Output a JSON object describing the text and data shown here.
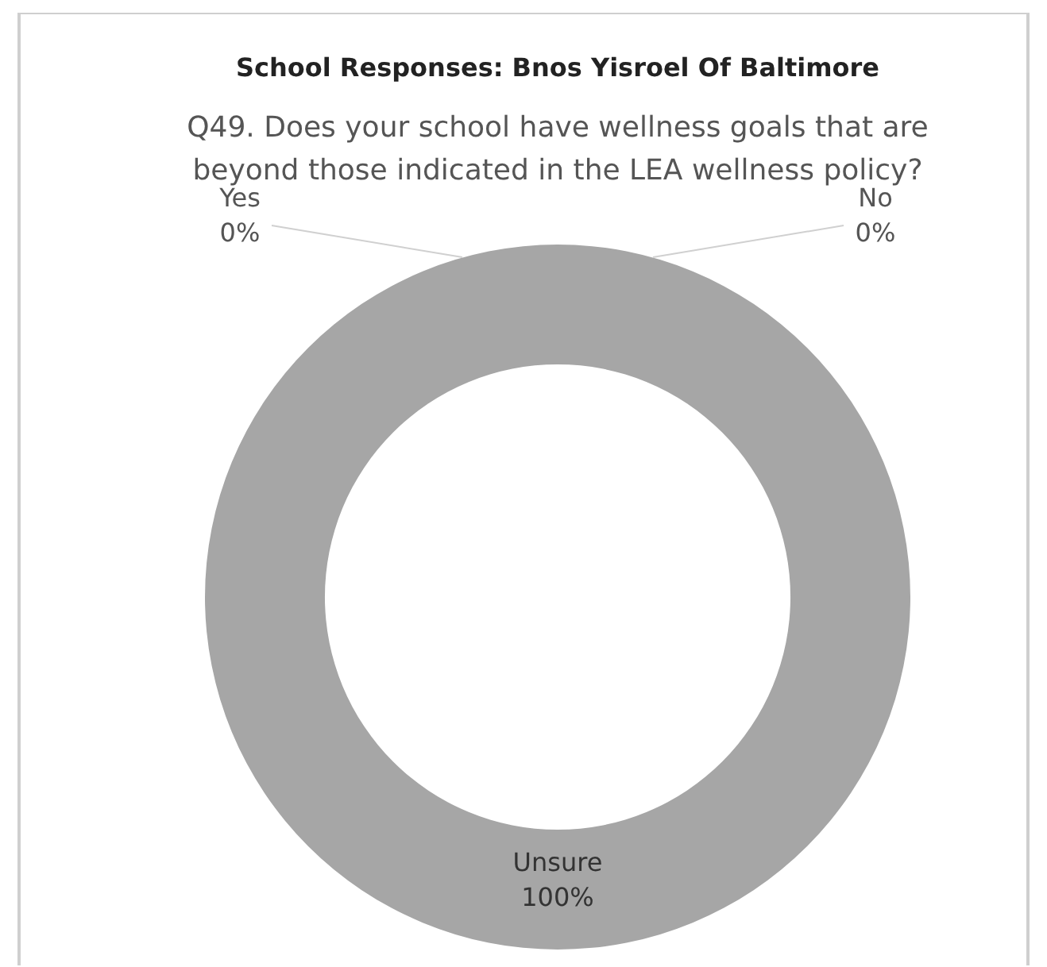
{
  "chart_data": {
    "type": "donut",
    "title": "School Responses: Bnos Yisroel Of Baltimore",
    "subtitle": "Q49. Does your school have wellness goals that are beyond those indicated in the LEA wellness policy?",
    "categories": [
      "Yes",
      "No",
      "Unsure"
    ],
    "values": [
      0,
      0,
      100
    ],
    "value_labels": [
      "0%",
      "0%",
      "100%"
    ],
    "colors": [
      "#a6a6a6",
      "#a6a6a6",
      "#a6a6a6"
    ]
  }
}
